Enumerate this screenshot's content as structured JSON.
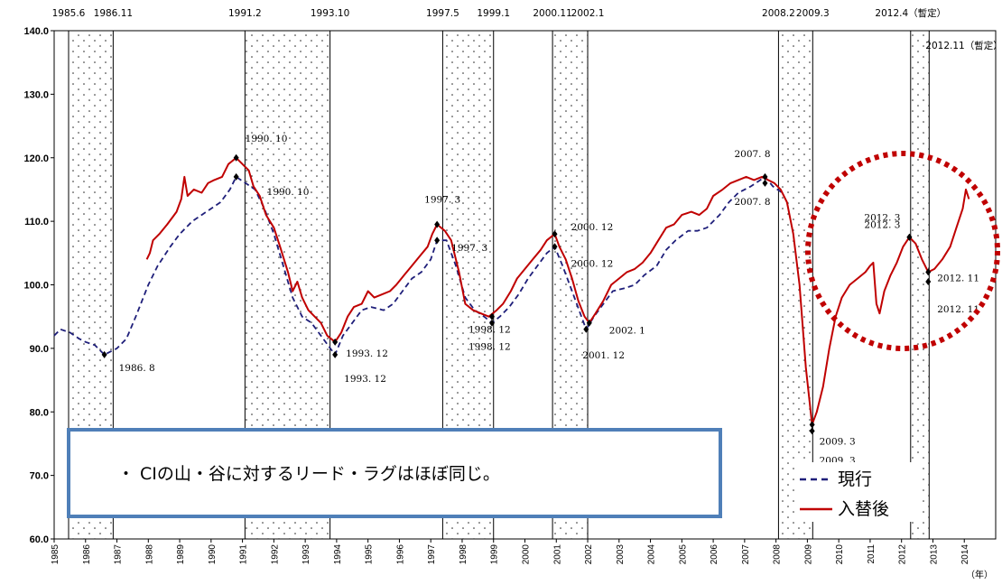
{
  "chart_data": {
    "type": "line",
    "ylim": [
      60,
      140
    ],
    "yticks": [
      "60.0",
      "70.0",
      "80.0",
      "90.0",
      "100.0",
      "110.0",
      "120.0",
      "130.0",
      "140.0"
    ],
    "xlim": [
      1985,
      2015
    ],
    "xticks": [
      "1985",
      "1986",
      "1987",
      "1988",
      "1989",
      "1990",
      "1991",
      "1992",
      "1993",
      "1994",
      "1995",
      "1996",
      "1997",
      "1998",
      "1999",
      "2000",
      "2001",
      "2002",
      "2003",
      "2004",
      "2005",
      "2006",
      "2007",
      "2008",
      "2009",
      "2010",
      "2011",
      "2012",
      "2013",
      "2014"
    ],
    "xunit": "（年）",
    "recession_bands": [
      {
        "start": 1985.46,
        "end": 1986.88,
        "start_label": "1985.6",
        "end_label": "1986.11"
      },
      {
        "start": 1991.08,
        "end": 1993.79,
        "start_label": "1991.2",
        "end_label": "1993.10"
      },
      {
        "start": 1997.38,
        "end": 1999.0,
        "start_label": "1997.5",
        "end_label": "1999.1"
      },
      {
        "start": 2000.88,
        "end": 2002.0,
        "start_label": "2000.11",
        "end_label": "2002.1"
      },
      {
        "start": 2008.08,
        "end": 2009.17,
        "start_label": "2008.2",
        "end_label": "2009.3"
      },
      {
        "start": 2012.29,
        "end": 2012.88,
        "start_label": "2012.4（暫定）",
        "end_label": "2012.11（暫定）"
      }
    ],
    "series": [
      {
        "name": "現行",
        "color": "#1f1f7a",
        "style": "dashed",
        "points": [
          [
            1985.0,
            92.0
          ],
          [
            1985.2,
            93.0
          ],
          [
            1985.5,
            92.5
          ],
          [
            1985.8,
            91.5
          ],
          [
            1986.0,
            91.0
          ],
          [
            1986.3,
            90.5
          ],
          [
            1986.6,
            89.0
          ],
          [
            1987.0,
            90.0
          ],
          [
            1987.3,
            91.5
          ],
          [
            1987.6,
            95.0
          ],
          [
            1988.0,
            100.0
          ],
          [
            1988.3,
            103.0
          ],
          [
            1988.7,
            106.0
          ],
          [
            1989.0,
            108.0
          ],
          [
            1989.4,
            110.0
          ],
          [
            1989.7,
            111.0
          ],
          [
            1990.0,
            112.0
          ],
          [
            1990.3,
            113.0
          ],
          [
            1990.6,
            115.0
          ],
          [
            1990.8,
            117.0
          ],
          [
            1991.1,
            116.0
          ],
          [
            1991.4,
            115.0
          ],
          [
            1991.7,
            112.0
          ],
          [
            1992.0,
            108.0
          ],
          [
            1992.3,
            103.0
          ],
          [
            1992.6,
            98.0
          ],
          [
            1992.9,
            95.0
          ],
          [
            1993.2,
            94.0
          ],
          [
            1993.5,
            92.0
          ],
          [
            1993.8,
            90.0
          ],
          [
            1993.95,
            89.0
          ],
          [
            1994.2,
            92.0
          ],
          [
            1994.5,
            94.0
          ],
          [
            1994.8,
            96.0
          ],
          [
            1995.1,
            96.5
          ],
          [
            1995.5,
            96.0
          ],
          [
            1995.8,
            97.0
          ],
          [
            1996.1,
            99.0
          ],
          [
            1996.4,
            101.0
          ],
          [
            1996.7,
            102.0
          ],
          [
            1997.0,
            104.0
          ],
          [
            1997.2,
            107.0
          ],
          [
            1997.5,
            107.0
          ],
          [
            1997.8,
            103.0
          ],
          [
            1998.1,
            98.0
          ],
          [
            1998.4,
            96.0
          ],
          [
            1998.7,
            95.0
          ],
          [
            1998.95,
            94.0
          ],
          [
            1999.2,
            95.0
          ],
          [
            1999.5,
            96.5
          ],
          [
            1999.8,
            98.5
          ],
          [
            2000.1,
            101.0
          ],
          [
            2000.4,
            103.0
          ],
          [
            2000.7,
            105.0
          ],
          [
            2000.95,
            106.0
          ],
          [
            2001.2,
            103.0
          ],
          [
            2001.5,
            99.0
          ],
          [
            2001.8,
            95.0
          ],
          [
            2001.95,
            93.0
          ],
          [
            2002.2,
            95.0
          ],
          [
            2002.5,
            97.0
          ],
          [
            2002.8,
            99.0
          ],
          [
            2003.2,
            99.5
          ],
          [
            2003.5,
            100.0
          ],
          [
            2003.8,
            101.5
          ],
          [
            2004.2,
            103.0
          ],
          [
            2004.5,
            105.5
          ],
          [
            2004.8,
            107.0
          ],
          [
            2005.2,
            108.5
          ],
          [
            2005.5,
            108.5
          ],
          [
            2005.8,
            109.0
          ],
          [
            2006.2,
            111.0
          ],
          [
            2006.5,
            113.0
          ],
          [
            2006.8,
            114.5
          ],
          [
            2007.2,
            115.5
          ],
          [
            2007.5,
            116.5
          ],
          [
            2007.65,
            117.0
          ],
          [
            2007.9,
            115.5
          ],
          [
            2008.2,
            114.5
          ]
        ]
      },
      {
        "name": "入替後",
        "color": "#c00000",
        "style": "solid",
        "points": [
          [
            1987.95,
            104.0
          ],
          [
            1988.05,
            105.0
          ],
          [
            1988.15,
            107.0
          ],
          [
            1988.35,
            108.0
          ],
          [
            1988.6,
            109.5
          ],
          [
            1988.9,
            111.5
          ],
          [
            1989.05,
            113.5
          ],
          [
            1989.15,
            117.0
          ],
          [
            1989.25,
            114.0
          ],
          [
            1989.45,
            115.0
          ],
          [
            1989.7,
            114.5
          ],
          [
            1989.9,
            116.0
          ],
          [
            1990.1,
            116.5
          ],
          [
            1990.35,
            117.0
          ],
          [
            1990.55,
            119.0
          ],
          [
            1990.8,
            120.0
          ],
          [
            1991.0,
            119.0
          ],
          [
            1991.2,
            118.0
          ],
          [
            1991.35,
            115.5
          ],
          [
            1991.55,
            114.0
          ],
          [
            1991.75,
            111.0
          ],
          [
            1992.0,
            109.0
          ],
          [
            1992.2,
            106.0
          ],
          [
            1992.45,
            102.0
          ],
          [
            1992.6,
            99.0
          ],
          [
            1992.75,
            100.5
          ],
          [
            1992.9,
            98.0
          ],
          [
            1993.1,
            96.0
          ],
          [
            1993.3,
            95.0
          ],
          [
            1993.5,
            94.0
          ],
          [
            1993.7,
            92.0
          ],
          [
            1993.95,
            91.0
          ],
          [
            1994.15,
            92.5
          ],
          [
            1994.35,
            95.0
          ],
          [
            1994.55,
            96.5
          ],
          [
            1994.8,
            97.0
          ],
          [
            1995.0,
            99.0
          ],
          [
            1995.2,
            98.0
          ],
          [
            1995.45,
            98.5
          ],
          [
            1995.7,
            99.0
          ],
          [
            1995.9,
            100.0
          ],
          [
            1996.15,
            101.5
          ],
          [
            1996.4,
            103.0
          ],
          [
            1996.65,
            104.5
          ],
          [
            1996.9,
            106.0
          ],
          [
            1997.05,
            108.0
          ],
          [
            1997.2,
            109.5
          ],
          [
            1997.45,
            108.5
          ],
          [
            1997.65,
            107.0
          ],
          [
            1997.9,
            102.0
          ],
          [
            1998.1,
            97.0
          ],
          [
            1998.35,
            96.0
          ],
          [
            1998.6,
            95.5
          ],
          [
            1998.85,
            95.0
          ],
          [
            1999.1,
            96.0
          ],
          [
            1999.3,
            97.0
          ],
          [
            1999.55,
            99.0
          ],
          [
            1999.75,
            101.0
          ],
          [
            2000.0,
            102.5
          ],
          [
            2000.25,
            104.0
          ],
          [
            2000.5,
            105.5
          ],
          [
            2000.7,
            107.0
          ],
          [
            2000.95,
            108.0
          ],
          [
            2001.1,
            106.0
          ],
          [
            2001.3,
            104.0
          ],
          [
            2001.5,
            101.0
          ],
          [
            2001.7,
            97.5
          ],
          [
            2001.9,
            95.0
          ],
          [
            2002.05,
            94.0
          ],
          [
            2002.25,
            95.5
          ],
          [
            2002.5,
            97.5
          ],
          [
            2002.75,
            100.0
          ],
          [
            2003.0,
            101.0
          ],
          [
            2003.25,
            102.0
          ],
          [
            2003.5,
            102.5
          ],
          [
            2003.75,
            103.5
          ],
          [
            2004.0,
            105.0
          ],
          [
            2004.25,
            107.0
          ],
          [
            2004.5,
            109.0
          ],
          [
            2004.75,
            109.5
          ],
          [
            2005.0,
            111.0
          ],
          [
            2005.3,
            111.5
          ],
          [
            2005.55,
            111.0
          ],
          [
            2005.8,
            112.0
          ],
          [
            2006.0,
            114.0
          ],
          [
            2006.3,
            115.0
          ],
          [
            2006.55,
            116.0
          ],
          [
            2006.8,
            116.5
          ],
          [
            2007.05,
            117.0
          ],
          [
            2007.3,
            116.5
          ],
          [
            2007.55,
            117.0
          ],
          [
            2007.75,
            116.5
          ],
          [
            2007.95,
            116.0
          ],
          [
            2008.15,
            115.0
          ],
          [
            2008.35,
            113.0
          ],
          [
            2008.55,
            108.0
          ],
          [
            2008.75,
            100.0
          ],
          [
            2008.95,
            87.0
          ],
          [
            2009.15,
            78.0
          ],
          [
            2009.3,
            80.0
          ],
          [
            2009.5,
            84.0
          ],
          [
            2009.7,
            90.0
          ],
          [
            2009.9,
            95.0
          ],
          [
            2010.1,
            98.0
          ],
          [
            2010.35,
            100.0
          ],
          [
            2010.6,
            101.0
          ],
          [
            2010.85,
            102.0
          ],
          [
            2011.0,
            103.0
          ],
          [
            2011.1,
            103.5
          ],
          [
            2011.2,
            97.0
          ],
          [
            2011.3,
            95.5
          ],
          [
            2011.45,
            99.0
          ],
          [
            2011.65,
            101.5
          ],
          [
            2011.85,
            103.5
          ],
          [
            2012.05,
            106.0
          ],
          [
            2012.25,
            107.5
          ],
          [
            2012.45,
            106.5
          ],
          [
            2012.65,
            104.0
          ],
          [
            2012.85,
            102.0
          ],
          [
            2013.05,
            102.5
          ],
          [
            2013.3,
            104.0
          ],
          [
            2013.55,
            106.0
          ],
          [
            2013.75,
            109.0
          ],
          [
            2013.95,
            112.0
          ],
          [
            2014.05,
            115.0
          ],
          [
            2014.15,
            113.5
          ]
        ]
      }
    ],
    "annotations": [
      {
        "text": "1986. 8",
        "x": 1986.6,
        "y": 89.0
      },
      {
        "text": "1990. 10",
        "x": 1990.8,
        "y": 120.0
      },
      {
        "text": "1990. 10",
        "x": 1990.8,
        "y": 117.0
      },
      {
        "text": "1993. 12",
        "x": 1993.95,
        "y": 91.0
      },
      {
        "text": "1993. 12",
        "x": 1993.95,
        "y": 89.0
      },
      {
        "text": "1997. 3",
        "x": 1997.2,
        "y": 109.5
      },
      {
        "text": "1997. 3",
        "x": 1997.2,
        "y": 107.0
      },
      {
        "text": "1998. 12",
        "x": 1998.95,
        "y": 95.0
      },
      {
        "text": "1998. 12",
        "x": 1998.95,
        "y": 94.0
      },
      {
        "text": "2000. 12",
        "x": 2000.95,
        "y": 108.0
      },
      {
        "text": "2000. 12",
        "x": 2000.95,
        "y": 106.0
      },
      {
        "text": "2001. 12",
        "x": 2001.95,
        "y": 93.0
      },
      {
        "text": "2002. 1",
        "x": 2002.05,
        "y": 94.0
      },
      {
        "text": "2007. 8",
        "x": 2007.65,
        "y": 117.0
      },
      {
        "text": "2007. 8",
        "x": 2007.65,
        "y": 116.0
      },
      {
        "text": "2009. 3",
        "x": 2009.15,
        "y": 78.0
      },
      {
        "text": "2009. 3",
        "x": 2009.15,
        "y": 77.0
      },
      {
        "text": "2012. 3",
        "x": 2012.25,
        "y": 107.5
      },
      {
        "text": "2012. 3",
        "x": 2012.25,
        "y": 107.5
      },
      {
        "text": "2012. 11",
        "x": 2012.85,
        "y": 102.0
      },
      {
        "text": "2012. 11",
        "x": 2012.85,
        "y": 100.5
      }
    ],
    "note": "・ CIの山・谷に対するリード・ラグはほぼ同じ。",
    "legend": [
      "現行",
      "入替後"
    ]
  }
}
